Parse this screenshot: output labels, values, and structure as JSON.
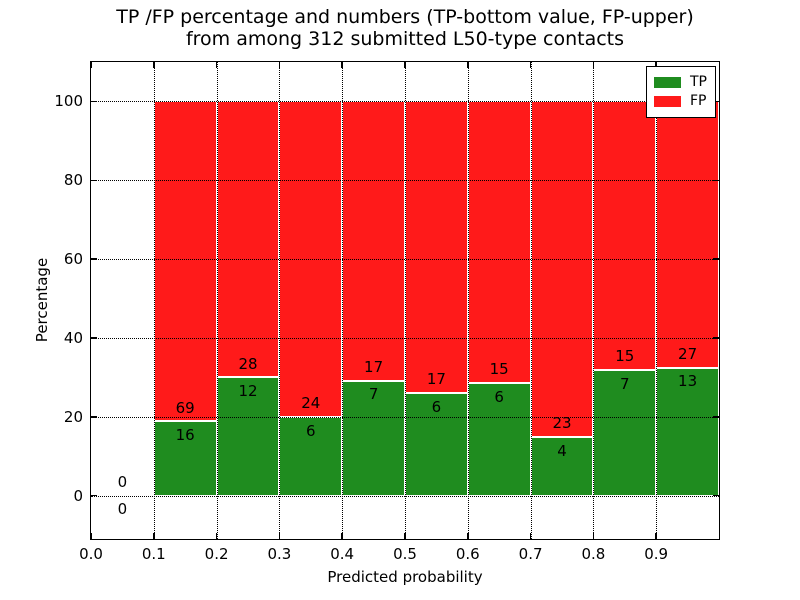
{
  "figure": {
    "title_line1": "TP /FP percentage and numbers (TP-bottom value, FP-upper)",
    "title_line2": "from among 312 submitted L50-type contacts"
  },
  "legend": {
    "entries": [
      {
        "label": "TP"
      },
      {
        "label": "FP"
      }
    ]
  },
  "chart_data": {
    "type": "bar",
    "subtype": "stacked-100-percent-histogram",
    "title": "TP /FP percentage and numbers (TP-bottom value, FP-upper)\nfrom among 312 submitted L50-type contacts",
    "xlabel": "Predicted probability",
    "ylabel": "Percentage",
    "xlim": [
      0.0,
      1.0
    ],
    "ylim": [
      -11,
      110
    ],
    "xticks": [
      "0.0",
      "0.1",
      "0.2",
      "0.3",
      "0.4",
      "0.5",
      "0.6",
      "0.7",
      "0.8",
      "0.9"
    ],
    "yticks": [
      0,
      20,
      40,
      60,
      80,
      100
    ],
    "grid": true,
    "grid_style": "dotted",
    "legend_position": "upper right",
    "bin_width": 0.1,
    "bin_starts": [
      0.0,
      0.1,
      0.2,
      0.3,
      0.4,
      0.5,
      0.6,
      0.7,
      0.8,
      0.9
    ],
    "total_contacts": 312,
    "series": [
      {
        "name": "TP",
        "color": "#1f8c1f",
        "counts": [
          0,
          16,
          12,
          6,
          7,
          6,
          6,
          4,
          7,
          13
        ]
      },
      {
        "name": "FP",
        "color": "#ff1a1a",
        "counts": [
          0,
          69,
          28,
          24,
          17,
          17,
          15,
          23,
          15,
          27
        ]
      }
    ],
    "tp_percent_by_bin": [
      0,
      18.8,
      30.0,
      20.0,
      29.2,
      26.1,
      28.6,
      14.8,
      31.8,
      32.5
    ],
    "label_offset_units": 3.5
  }
}
